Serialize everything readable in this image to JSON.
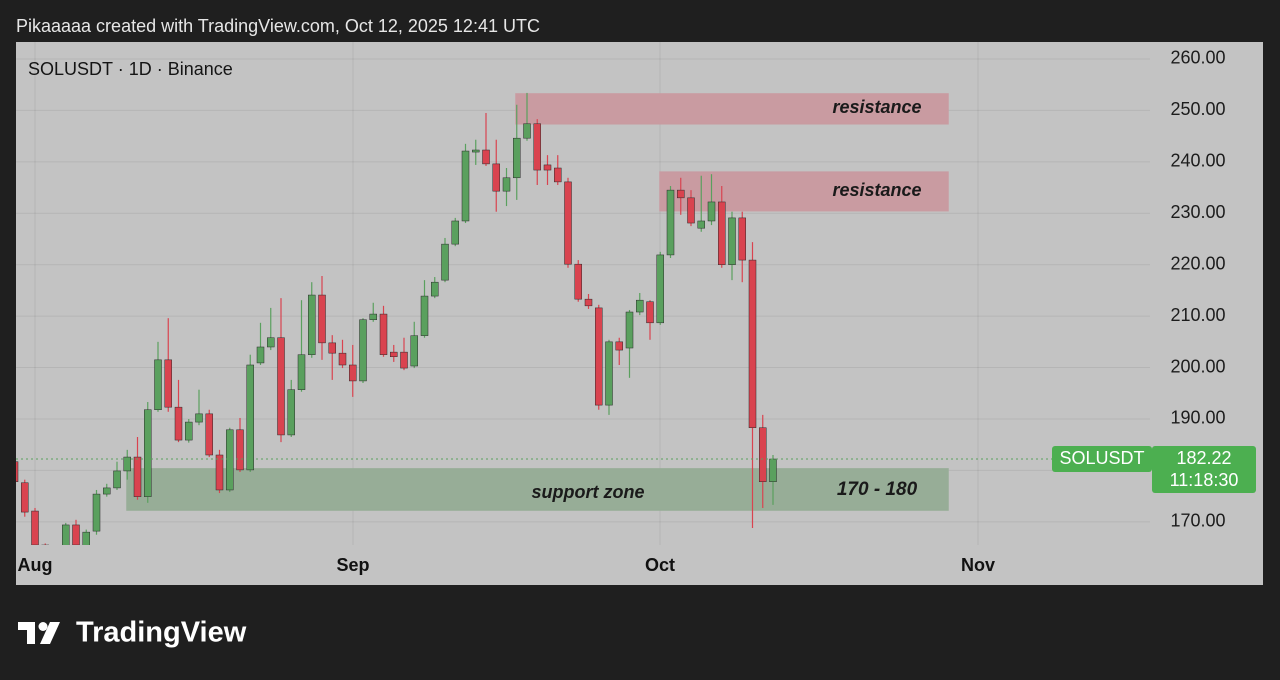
{
  "header": "Pikaaaaa created with TradingView.com, Oct 12, 2025 12:41 UTC",
  "logo": "TradingView",
  "chart_data": {
    "type": "candlestick",
    "title": "SOLUSDT · 1D · Binance",
    "x_labels": [
      "Aug",
      "Sep",
      "Oct",
      "Nov"
    ],
    "open": [
      181.7,
      177.6,
      172.1,
      165.5,
      163.5,
      164.5,
      169.4,
      165,
      168.2,
      175.4,
      176.6,
      179.9,
      182.6,
      174.9,
      191.8,
      201.5,
      192.3,
      185.9,
      189.4,
      191.0,
      183.0,
      176.2,
      187.9,
      180.1,
      200.9,
      204.0,
      205.8,
      186.9,
      195.7,
      202.5,
      214.1,
      204.8,
      202.8,
      200.5,
      197.4,
      209.3,
      210.4,
      203.0,
      203.0,
      200.3,
      206.2,
      213.9,
      217.0,
      224.0,
      228.5,
      241.9,
      242.3,
      239.6,
      234.3,
      236.9,
      244.6,
      247.4,
      239.4,
      238.8,
      236.1,
      220.1,
      213.3,
      211.6,
      192.7,
      205.0,
      203.8,
      210.8,
      212.8,
      208.7,
      221.9,
      234.5,
      233.0,
      227.1,
      228.5,
      232.2,
      220.0,
      229.1,
      220.9,
      188.3,
      177.8
    ],
    "high": [
      182.0,
      178.2,
      172.7,
      165.8,
      165.5,
      169.8,
      170.4,
      168.5,
      176.2,
      177.4,
      181.7,
      184.0,
      186.5,
      193.3,
      205.0,
      209.6,
      197.6,
      190.0,
      195.7,
      191.8,
      184.0,
      188.3,
      190.2,
      202.5,
      208.7,
      211.6,
      213.5,
      197.6,
      213.1,
      216.6,
      217.8,
      206.3,
      205.4,
      204.4,
      209.6,
      212.6,
      212.0,
      204.4,
      205.8,
      208.9,
      217.0,
      217.6,
      225.2,
      229.1,
      243.5,
      244.3,
      249.5,
      244.3,
      238.8,
      251.1,
      253.4,
      248.3,
      241.3,
      241.3,
      236.9,
      220.9,
      214.3,
      212.2,
      205.4,
      205.8,
      211.2,
      214.5,
      213.1,
      222.5,
      235.3,
      236.9,
      234.5,
      237.3,
      237.6,
      235.3,
      230.3,
      230.3,
      224.4,
      190.8,
      183.0
    ],
    "low": [
      177.2,
      171.0,
      164,
      162,
      161.5,
      163,
      164,
      164,
      167.5,
      174.9,
      176.2,
      178.2,
      174.3,
      173.7,
      191.4,
      191.4,
      185.5,
      185.4,
      188.8,
      182.6,
      175.6,
      175.8,
      179.7,
      179.7,
      200.5,
      203.4,
      185.5,
      186.5,
      195.3,
      201.9,
      201.5,
      197.6,
      199.9,
      194.3,
      197.0,
      208.9,
      202.1,
      201.1,
      199.5,
      199.9,
      205.8,
      213.5,
      216.6,
      223.6,
      228.1,
      239.4,
      239.2,
      230.3,
      231.4,
      232.6,
      244.1,
      235.5,
      235.5,
      235.5,
      219.4,
      212.8,
      211.4,
      191.8,
      190.8,
      200.5,
      198.0,
      210.2,
      205.4,
      208.3,
      221.3,
      229.7,
      227.5,
      226.4,
      227.7,
      219.4,
      217.0,
      216.6,
      168.8,
      172.7,
      173.3
    ],
    "close": [
      177.8,
      171.9,
      165.5,
      163.5,
      164,
      169.4,
      165.5,
      168.0,
      175.4,
      176.6,
      179.9,
      182.6,
      174.9,
      191.8,
      201.5,
      192.3,
      185.9,
      189.4,
      191.0,
      183.0,
      176.2,
      187.9,
      180.1,
      200.5,
      204.0,
      205.8,
      186.9,
      195.7,
      202.5,
      214.1,
      204.8,
      202.8,
      200.5,
      197.4,
      209.3,
      210.4,
      202.5,
      202.1,
      199.9,
      206.2,
      213.9,
      216.6,
      224.0,
      228.5,
      242.1,
      242.3,
      239.6,
      234.3,
      236.9,
      244.6,
      247.4,
      238.4,
      238.4,
      236.1,
      220.1,
      213.3,
      212.0,
      192.7,
      205.0,
      203.4,
      210.8,
      213.1,
      208.7,
      221.9,
      234.5,
      233.0,
      228.1,
      228.5,
      232.2,
      220.0,
      229.1,
      220.9,
      188.3,
      177.8,
      182.22
    ],
    "up_color": "#5aa05e",
    "down_color": "#d9434f",
    "ylim": [
      165.5,
      263.3
    ],
    "yticks": [
      {
        "value": 170,
        "label": "170.00"
      },
      {
        "value": 180,
        "label": "180.00"
      },
      {
        "value": 190,
        "label": "190.00"
      },
      {
        "value": 200,
        "label": "200.00"
      },
      {
        "value": 210,
        "label": "210.00"
      },
      {
        "value": 220,
        "label": "220.00"
      },
      {
        "value": 230,
        "label": "230.00"
      },
      {
        "value": 240,
        "label": "240.00"
      },
      {
        "value": 250,
        "label": "250.00"
      },
      {
        "value": 260,
        "label": "260.00"
      }
    ],
    "grid": true,
    "price_tag_symbol": "SOLUSDT",
    "countdown": "11:18:30",
    "zones": [
      {
        "label": "resistance",
        "low": 247.4,
        "high": 253.2,
        "color": "#c99ba1"
      },
      {
        "label": "resistance",
        "low": 230.5,
        "high": 238.0,
        "color": "#c99ba1"
      },
      {
        "label": "support zone",
        "range_label": "170 - 180",
        "low": 172.3,
        "high": 180.3,
        "color": "#97ad97"
      }
    ]
  }
}
